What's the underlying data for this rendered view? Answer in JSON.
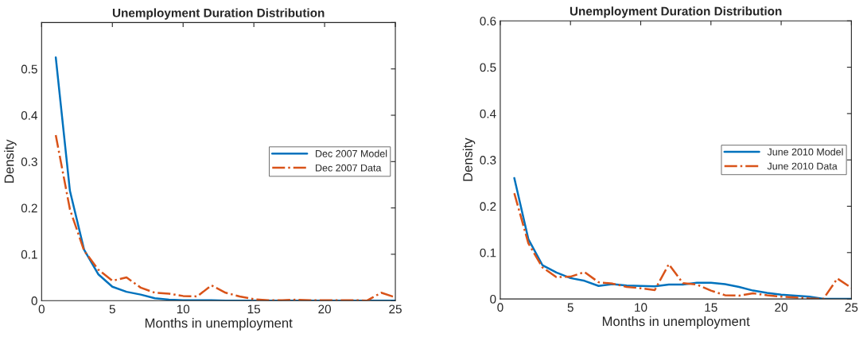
{
  "chart_data": [
    {
      "type": "line",
      "title": "Unemployment Duration Distribution",
      "xlabel": "Months in unemployment",
      "ylabel": "Density",
      "x": [
        1,
        2,
        3,
        4,
        5,
        6,
        7,
        8,
        9,
        10,
        11,
        12,
        13,
        14,
        15,
        16,
        17,
        18,
        19,
        20,
        21,
        22,
        23,
        24,
        25
      ],
      "series": [
        {
          "name": "Dec 2007 Model",
          "color": "#0072bd",
          "line_style": "solid",
          "values": [
            0.525,
            0.237,
            0.11,
            0.057,
            0.03,
            0.019,
            0.013,
            0.005,
            0.002,
            0.001,
            0.001,
            0.001,
            0,
            0,
            0,
            0,
            0,
            0,
            0,
            0,
            0,
            0,
            0,
            0,
            0
          ]
        },
        {
          "name": "Dec 2007 Data",
          "color": "#d95319",
          "line_style": "dashdot",
          "values": [
            0.357,
            0.197,
            0.108,
            0.067,
            0.043,
            0.05,
            0.028,
            0.017,
            0.015,
            0.01,
            0.009,
            0.033,
            0.017,
            0.009,
            0.003,
            0.001,
            0.001,
            0.002,
            0.001,
            0.001,
            0.001,
            0.001,
            0,
            0.017,
            0.007
          ]
        }
      ],
      "xlim": [
        0,
        25
      ],
      "xticks": [
        0,
        5,
        10,
        15,
        20,
        25
      ],
      "ylim": [
        0,
        0.6
      ],
      "yticks": [
        0,
        0.1,
        0.2,
        0.3,
        0.4,
        0.5,
        {
          "value": 0.6,
          "label": null
        }
      ],
      "grid": false,
      "legend": "right"
    },
    {
      "type": "line",
      "title": "Unemployment Duration Distribution",
      "xlabel": "Months in unemployment",
      "ylabel": "Density",
      "x": [
        1,
        2,
        3,
        4,
        5,
        6,
        7,
        8,
        9,
        10,
        11,
        12,
        13,
        14,
        15,
        16,
        17,
        18,
        19,
        20,
        21,
        22,
        23,
        24,
        25
      ],
      "series": [
        {
          "name": "June 2010 Model",
          "color": "#0072bd",
          "line_style": "solid",
          "values": [
            0.261,
            0.129,
            0.073,
            0.057,
            0.045,
            0.039,
            0.028,
            0.032,
            0.029,
            0.028,
            0.027,
            0.031,
            0.031,
            0.035,
            0.035,
            0.032,
            0.026,
            0.018,
            0.013,
            0.009,
            0.007,
            0.005,
            0,
            0,
            0
          ]
        },
        {
          "name": "June 2010 Data",
          "color": "#d95319",
          "line_style": "dashdot",
          "values": [
            0.228,
            0.12,
            0.068,
            0.047,
            0.048,
            0.058,
            0.036,
            0.033,
            0.026,
            0.023,
            0.019,
            0.075,
            0.034,
            0.031,
            0.018,
            0.008,
            0.007,
            0.012,
            0.008,
            0.005,
            0.003,
            0.001,
            0,
            0.044,
            0.024
          ]
        }
      ],
      "xlim": [
        0,
        25
      ],
      "xticks": [
        0,
        5,
        10,
        15,
        20,
        25
      ],
      "ylim": [
        0,
        0.6
      ],
      "yticks": [
        0,
        0.1,
        0.2,
        0.3,
        0.4,
        0.5,
        0.6
      ],
      "grid": false,
      "legend": "right"
    }
  ]
}
